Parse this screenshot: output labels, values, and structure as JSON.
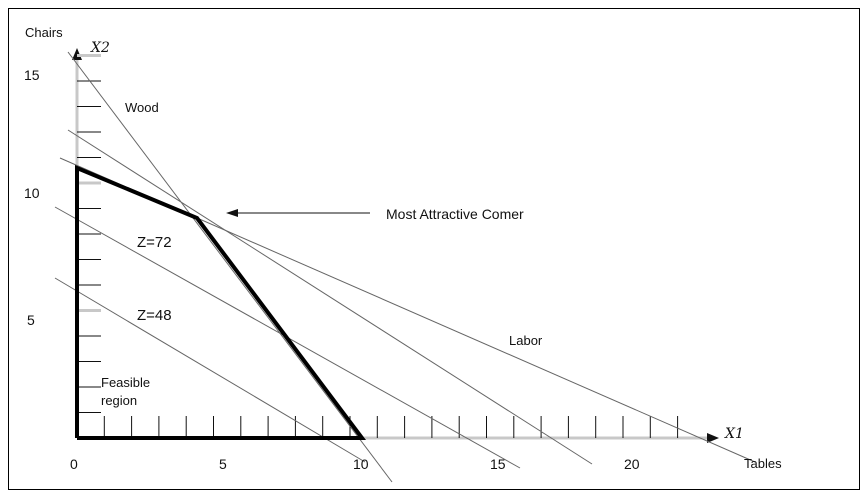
{
  "diagram": {
    "labels": {
      "y_axis_name": "Chairs",
      "x_axis_name": "Tables",
      "x_var": "X1",
      "y_var": "X2",
      "wood": "Wood",
      "labor": "Labor",
      "callout": "Most Attractive Comer",
      "z72": "Z=72",
      "z48": "Z=48",
      "feasible_line1": "Feasible",
      "feasible_line2": "region"
    },
    "x_tick_labels": [
      "0",
      "5",
      "10",
      "15",
      "20"
    ],
    "y_tick_labels": [
      "5",
      "10",
      "15"
    ]
  }
}
